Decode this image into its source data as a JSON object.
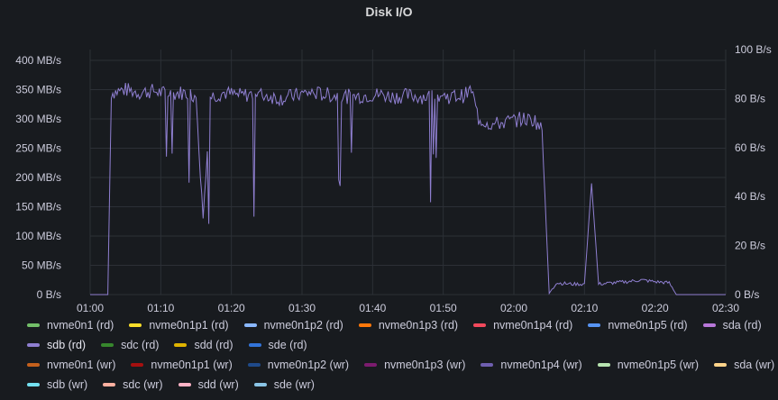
{
  "panel": {
    "title": "Disk I/O"
  },
  "colors": {
    "background": "#181b1f",
    "grid": "#2c3036",
    "text": "#ccccdc",
    "series_sdb_rd": "#8f7fd1"
  },
  "chart_data": {
    "type": "line",
    "title": "Disk I/O",
    "x_unit": "time",
    "x_ticks": [
      "01:00",
      "01:10",
      "01:20",
      "01:30",
      "01:40",
      "01:50",
      "02:00",
      "02:10",
      "02:20",
      "02:30"
    ],
    "xlim": [
      "01:00",
      "02:30"
    ],
    "y_left": {
      "ticks": [
        "0 B/s",
        "50 MB/s",
        "100 MB/s",
        "150 MB/s",
        "200 MB/s",
        "250 MB/s",
        "300 MB/s",
        "350 MB/s",
        "400 MB/s"
      ],
      "range_mb_s": [
        0,
        400
      ]
    },
    "y_right": {
      "ticks": [
        "0 B/s",
        "20 B/s",
        "40 B/s",
        "60 B/s",
        "80 B/s",
        "100 B/s"
      ],
      "range": [
        0,
        100
      ]
    },
    "grid": true,
    "legend_position": "bottom",
    "series": [
      {
        "name": "sdb (rd)",
        "unit": "MB/s",
        "color": "#8f7fd1",
        "points": [
          [
            "01:00",
            0
          ],
          [
            "01:02",
            0
          ],
          [
            "01:02.5",
            0
          ],
          [
            "01:03",
            345
          ],
          [
            "01:05",
            350
          ],
          [
            "01:07",
            345
          ],
          [
            "01:09",
            348
          ],
          [
            "01:11",
            342
          ],
          [
            "01:13",
            345
          ],
          [
            "01:15",
            340
          ],
          [
            "01:16",
            130
          ],
          [
            "01:17",
            338
          ],
          [
            "01:19",
            345
          ],
          [
            "01:21",
            340
          ],
          [
            "01:23",
            342
          ],
          [
            "01:25",
            340
          ],
          [
            "01:27",
            335
          ],
          [
            "01:29",
            340
          ],
          [
            "01:31",
            345
          ],
          [
            "01:33",
            342
          ],
          [
            "01:35",
            340
          ],
          [
            "01:37",
            338
          ],
          [
            "01:39",
            340
          ],
          [
            "01:41",
            342
          ],
          [
            "01:43",
            338
          ],
          [
            "01:45",
            340
          ],
          [
            "01:47",
            338
          ],
          [
            "01:49",
            340
          ],
          [
            "01:51",
            338
          ],
          [
            "01:53",
            340
          ],
          [
            "01:54",
            350
          ],
          [
            "01:55",
            300
          ],
          [
            "01:57",
            290
          ],
          [
            "01:59",
            295
          ],
          [
            "02:01",
            300
          ],
          [
            "02:03",
            298
          ],
          [
            "02:04",
            280
          ],
          [
            "02:05",
            2
          ],
          [
            "02:06",
            20
          ],
          [
            "02:08",
            18
          ],
          [
            "02:10",
            18
          ],
          [
            "02:11",
            190
          ],
          [
            "02:12",
            18
          ],
          [
            "02:14",
            20
          ],
          [
            "02:16",
            22
          ],
          [
            "02:18",
            25
          ],
          [
            "02:20",
            22
          ],
          [
            "02:22",
            20
          ],
          [
            "02:23",
            0
          ],
          [
            "02:30",
            0
          ]
        ]
      }
    ]
  },
  "legend": {
    "rows": [
      [
        {
          "label": "nvme0n1 (rd)",
          "color": "#73bf69"
        },
        {
          "label": "nvme0n1p1 (rd)",
          "color": "#fade2a"
        },
        {
          "label": "nvme0n1p2 (rd)",
          "color": "#8ab8ff"
        },
        {
          "label": "nvme0n1p3 (rd)",
          "color": "#ff780a"
        },
        {
          "label": "nvme0n1p4 (rd)",
          "color": "#f2495c"
        },
        {
          "label": "nvme0n1p5 (rd)",
          "color": "#5794f2"
        },
        {
          "label": "sda (rd)",
          "color": "#b877d9"
        }
      ],
      [
        {
          "label": "sdb (rd)",
          "color": "#8f7fd1",
          "active": true
        },
        {
          "label": "sdc (rd)",
          "color": "#37872d"
        },
        {
          "label": "sdd (rd)",
          "color": "#e0b400"
        },
        {
          "label": "sde (rd)",
          "color": "#3274d9"
        }
      ],
      [
        {
          "label": "nvme0n1 (wr)",
          "color": "#c4601c"
        },
        {
          "label": "nvme0n1p1 (wr)",
          "color": "#a50f0f"
        },
        {
          "label": "nvme0n1p2 (wr)",
          "color": "#1f4a8a"
        },
        {
          "label": "nvme0n1p3 (wr)",
          "color": "#7b1b6e"
        },
        {
          "label": "nvme0n1p4 (wr)",
          "color": "#6f5fb0"
        },
        {
          "label": "nvme0n1p5 (wr)",
          "color": "#b7e4b0"
        },
        {
          "label": "sda (wr)",
          "color": "#ffd48a"
        }
      ],
      [
        {
          "label": "sdb (wr)",
          "color": "#73e0f0"
        },
        {
          "label": "sdc (wr)",
          "color": "#ffb0a0"
        },
        {
          "label": "sdd (wr)",
          "color": "#ffb3c6"
        },
        {
          "label": "sde (wr)",
          "color": "#8ac4e6"
        }
      ]
    ]
  }
}
